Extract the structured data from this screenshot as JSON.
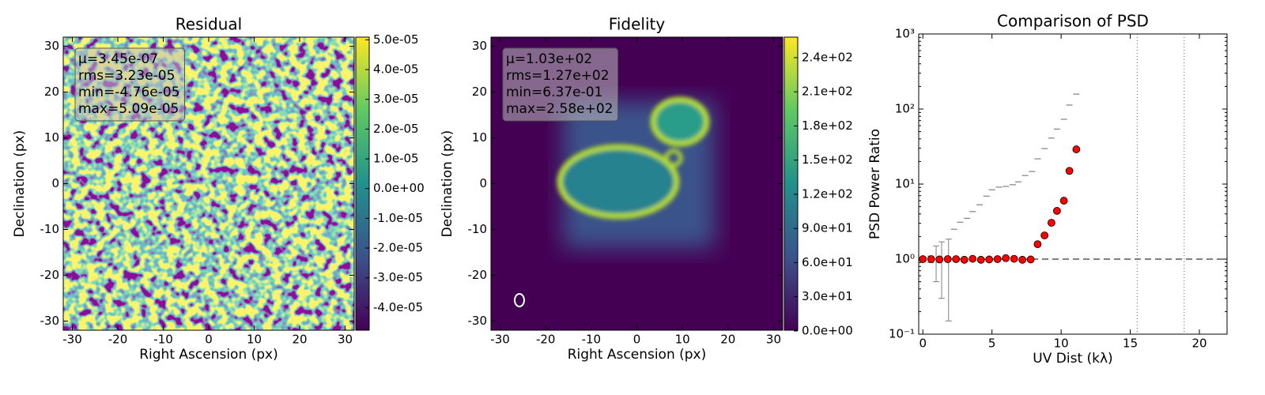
{
  "chart_data": [
    {
      "type": "image",
      "title": "Residual",
      "xlabel": "Right Ascension (px)",
      "ylabel": "Declination (px)",
      "xlim": [
        -32,
        32
      ],
      "ylim": [
        -32,
        32
      ],
      "xticks": [
        -30,
        -20,
        -10,
        0,
        10,
        20,
        30
      ],
      "yticks": [
        -30,
        -20,
        -10,
        0,
        10,
        20,
        30
      ],
      "stats": [
        "μ=3.45e-07",
        "rms=3.23e-05",
        "min=-4.76e-05",
        "max=5.09e-05"
      ],
      "colormap": "viridis",
      "colorbar": {
        "lim": [
          -4.76e-05,
          5.09e-05
        ],
        "ticks": [
          {
            "value": 5e-05,
            "label": "5.0e-05"
          },
          {
            "value": 4e-05,
            "label": "4.0e-05"
          },
          {
            "value": 3e-05,
            "label": "3.0e-05"
          },
          {
            "value": 2e-05,
            "label": "2.0e-05"
          },
          {
            "value": 1e-05,
            "label": "1.0e-05"
          },
          {
            "value": 0,
            "label": "0.0e+00"
          },
          {
            "value": -1e-05,
            "label": "-1.0e-05"
          },
          {
            "value": -2e-05,
            "label": "-2.0e-05"
          },
          {
            "value": -3e-05,
            "label": "-3.0e-05"
          },
          {
            "value": -4e-05,
            "label": "-4.0e-05"
          }
        ]
      }
    },
    {
      "type": "image",
      "title": "Fidelity",
      "xlabel": "Right Ascension (px)",
      "ylabel": "Declination (px)",
      "xlim": [
        -32,
        32
      ],
      "ylim": [
        -32,
        32
      ],
      "xticks": [
        -30,
        -20,
        -10,
        0,
        10,
        20,
        30
      ],
      "yticks": [
        -30,
        -20,
        -10,
        0,
        10,
        20,
        30
      ],
      "stats": [
        "μ=1.03e+02",
        "rms=1.27e+02",
        "min=6.37e-01",
        "max=2.58e+02"
      ],
      "colormap": "viridis",
      "colorbar": {
        "lim": [
          0.637,
          258
        ],
        "ticks": [
          {
            "value": 0,
            "label": "0.0e+00"
          },
          {
            "value": 30,
            "label": "3.0e+01"
          },
          {
            "value": 60,
            "label": "6.0e+01"
          },
          {
            "value": 90,
            "label": "9.0e+01"
          },
          {
            "value": 120,
            "label": "1.2e+02"
          },
          {
            "value": 150,
            "label": "1.5e+02"
          },
          {
            "value": 180,
            "label": "1.8e+02"
          },
          {
            "value": 210,
            "label": "2.1e+02"
          },
          {
            "value": 240,
            "label": "2.4e+02"
          }
        ]
      }
    },
    {
      "type": "scatter",
      "title": "Comparison of PSD",
      "xlabel": "UV Dist (kλ)",
      "ylabel": "PSD Power Ratio",
      "xlim": [
        -0.3,
        22
      ],
      "ylim": [
        0.1,
        1000
      ],
      "yscale": "log",
      "xticks": [
        0,
        5,
        10,
        15,
        20
      ],
      "yticks": [
        {
          "value": 0.1,
          "label": "10⁻¹"
        },
        {
          "value": 1,
          "label": "10⁰"
        },
        {
          "value": 10,
          "label": "10¹"
        },
        {
          "value": 100,
          "label": "10²"
        },
        {
          "value": 1000,
          "label": "10³"
        }
      ],
      "hlines": [
        1
      ],
      "vlines": [
        15.5,
        18.9
      ],
      "series": [
        {
          "marker": "_",
          "color": "#808080",
          "x": [
            0.56,
            0.96,
            1.36,
            1.86
          ],
          "values": [
            1,
            1,
            1,
            1
          ],
          "errors": [
            0.1,
            0.5,
            0.7,
            0.85
          ]
        },
        {
          "marker": "_",
          "color": "#808080",
          "x": [
            2.26,
            2.7,
            3.2,
            3.6,
            4.1,
            4.6,
            5.0,
            5.5,
            6.0,
            6.5,
            6.9,
            7.4,
            7.9,
            8.3,
            8.8,
            9.3,
            9.7,
            10.2,
            10.6,
            11.1
          ],
          "values": [
            2.5,
            3.1,
            3.5,
            4.3,
            5.3,
            6.9,
            8.4,
            9.1,
            9.3,
            9.8,
            10.7,
            13,
            14.7,
            21.7,
            29.7,
            41,
            54,
            73,
            113,
            158
          ]
        },
        {
          "marker": "o",
          "color": "#ff0000",
          "x": [
            0,
            0.6,
            1.2,
            1.8,
            2.4,
            3.0,
            3.6,
            4.2,
            4.8,
            5.4,
            6.0,
            6.6,
            7.2,
            7.8,
            8.3,
            8.8,
            9.3,
            9.7,
            10.2,
            10.6,
            11.1
          ],
          "values": [
            1.0,
            1.0,
            0.99,
            1.0,
            1.0,
            0.98,
            1.01,
            0.98,
            0.99,
            1.0,
            1.03,
            1.01,
            0.98,
            0.99,
            1.58,
            2.07,
            3.05,
            4.4,
            6.0,
            15,
            29
          ]
        }
      ]
    }
  ]
}
